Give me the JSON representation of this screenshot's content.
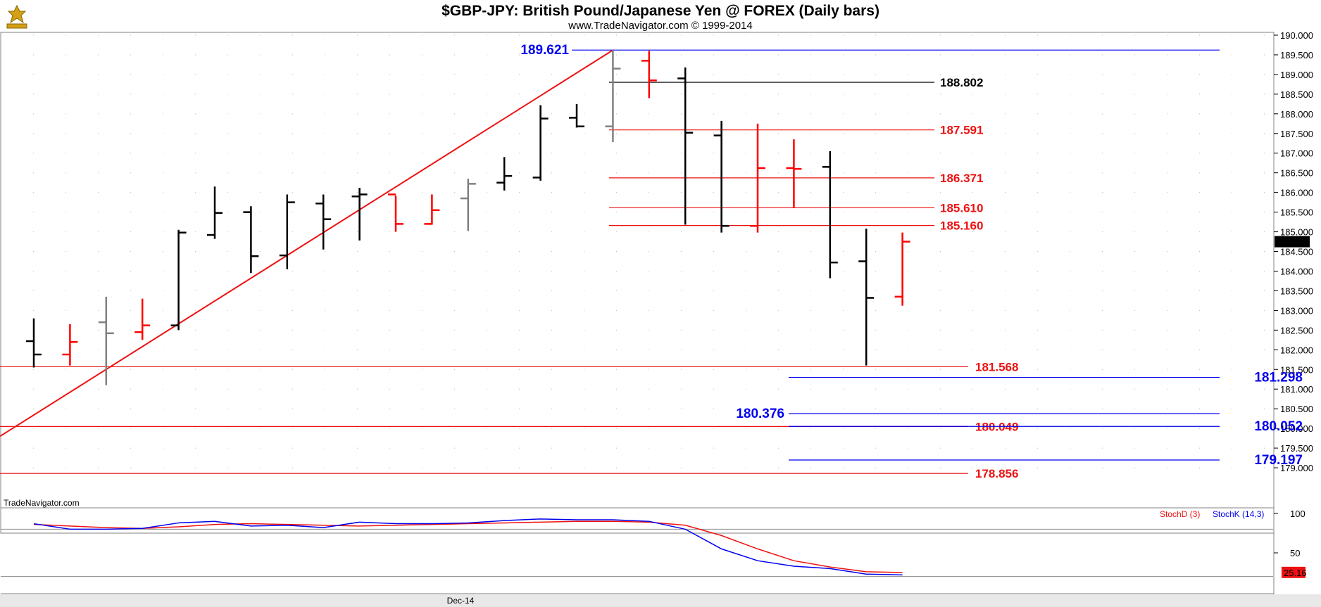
{
  "header": {
    "title": "$GBP-JPY:  British Pound/Japanese Yen @ FOREX  (Daily bars)",
    "subtitle": "www.TradeNavigator.com © 1999-2014",
    "watermark": "TradeNavigator.com"
  },
  "colors": {
    "up_bar": "#ff0000",
    "down_bar": "#000000",
    "neutral_bar": "#808080",
    "fib_red": "#ee1111",
    "fib_blue": "#0000ee",
    "level_black": "#000000",
    "stoch_d": "#ee1111",
    "stoch_k": "#0000ee",
    "last_price_bg": "#000000",
    "stoch_last_bg": "#ee1111"
  },
  "chart_data": [
    {
      "type": "ohlc",
      "title": "$GBP-JPY:  British Pound/Japanese Yen @ FOREX  (Daily bars)",
      "ylim": [
        178.5,
        190.0
      ],
      "y_ticks": [
        "190.000",
        "189.500",
        "189.000",
        "188.500",
        "188.000",
        "187.500",
        "187.000",
        "186.500",
        "186.000",
        "185.500",
        "185.000",
        "184.500",
        "184.000",
        "183.500",
        "183.000",
        "182.500",
        "182.000",
        "181.500",
        "181.000",
        "180.500",
        "180.000",
        "179.500",
        "179.000"
      ],
      "x_label": "Dec-14",
      "last_price": "184.749",
      "bars": [
        {
          "o": 182.22,
          "h": 182.8,
          "l": 181.55,
          "c": 181.88,
          "color": "black"
        },
        {
          "o": 181.88,
          "h": 182.65,
          "l": 181.6,
          "c": 182.2,
          "color": "red"
        },
        {
          "o": 182.7,
          "h": 183.35,
          "l": 181.1,
          "c": 182.42,
          "color": "gray"
        },
        {
          "o": 182.45,
          "h": 183.3,
          "l": 182.25,
          "c": 182.62,
          "color": "red"
        },
        {
          "o": 182.62,
          "h": 185.05,
          "l": 182.5,
          "c": 184.98,
          "color": "black"
        },
        {
          "o": 184.92,
          "h": 186.15,
          "l": 184.82,
          "c": 185.48,
          "color": "black"
        },
        {
          "o": 185.5,
          "h": 185.65,
          "l": 183.95,
          "c": 184.38,
          "color": "black"
        },
        {
          "o": 184.4,
          "h": 185.95,
          "l": 184.05,
          "c": 185.75,
          "color": "black"
        },
        {
          "o": 185.72,
          "h": 185.95,
          "l": 184.55,
          "c": 185.32,
          "color": "black"
        },
        {
          "o": 185.9,
          "h": 186.12,
          "l": 184.78,
          "c": 185.95,
          "color": "black"
        },
        {
          "o": 185.95,
          "h": 185.92,
          "l": 185.0,
          "c": 185.2,
          "color": "red"
        },
        {
          "o": 185.2,
          "h": 185.95,
          "l": 185.18,
          "c": 185.55,
          "color": "red"
        },
        {
          "o": 185.85,
          "h": 186.35,
          "l": 185.02,
          "c": 186.22,
          "color": "gray"
        },
        {
          "o": 186.25,
          "h": 186.9,
          "l": 186.05,
          "c": 186.42,
          "color": "black"
        },
        {
          "o": 186.38,
          "h": 188.22,
          "l": 186.3,
          "c": 187.88,
          "color": "black"
        },
        {
          "o": 187.9,
          "h": 188.25,
          "l": 187.65,
          "c": 187.68,
          "color": "black"
        },
        {
          "o": 187.68,
          "h": 189.62,
          "l": 187.28,
          "c": 189.15,
          "color": "gray"
        },
        {
          "o": 189.35,
          "h": 189.6,
          "l": 188.4,
          "c": 188.85,
          "color": "red"
        },
        {
          "o": 188.9,
          "h": 189.18,
          "l": 185.18,
          "c": 187.52,
          "color": "black"
        },
        {
          "o": 187.45,
          "h": 187.82,
          "l": 184.98,
          "c": 185.15,
          "color": "black"
        },
        {
          "o": 185.15,
          "h": 187.75,
          "l": 184.98,
          "c": 186.62,
          "color": "red"
        },
        {
          "o": 186.62,
          "h": 187.35,
          "l": 185.6,
          "c": 186.6,
          "color": "red"
        },
        {
          "o": 186.65,
          "h": 187.05,
          "l": 183.82,
          "c": 184.22,
          "color": "black"
        },
        {
          "o": 184.25,
          "h": 185.08,
          "l": 181.6,
          "c": 183.32,
          "color": "black"
        },
        {
          "o": 183.35,
          "h": 184.98,
          "l": 183.12,
          "c": 184.75,
          "color": "red"
        }
      ],
      "trendline": {
        "from_bar": 0,
        "from_price": 179.8,
        "to_bar": 16,
        "to_price": 189.62,
        "note": ""
      },
      "levels": [
        {
          "price": 189.621,
          "label": "189.621",
          "color": "blue"
        },
        {
          "price": 188.802,
          "label": "188.802",
          "color": "black"
        },
        {
          "price": 187.591,
          "label": "187.591",
          "color": "red"
        },
        {
          "price": 186.371,
          "label": "186.371",
          "color": "red"
        },
        {
          "price": 185.61,
          "label": "185.610",
          "color": "red"
        },
        {
          "price": 185.16,
          "label": "185.160",
          "color": "red"
        },
        {
          "price": 181.568,
          "label": "181.568",
          "color": "red"
        },
        {
          "price": 181.298,
          "label": "181.298",
          "color": "blue"
        },
        {
          "price": 180.376,
          "label": "180.376",
          "color": "blue"
        },
        {
          "price": 180.049,
          "label": "180.049",
          "color": "red"
        },
        {
          "price": 180.052,
          "label": "180.052",
          "color": "blue"
        },
        {
          "price": 179.197,
          "label": "179.197",
          "color": "blue"
        },
        {
          "price": 178.856,
          "label": "178.856",
          "color": "red"
        }
      ]
    },
    {
      "type": "line",
      "title": "",
      "ylim": [
        0,
        100
      ],
      "y_ticks": [
        "100",
        "50"
      ],
      "series": [
        {
          "name": "StochD (3)",
          "color": "red",
          "values": [
            86,
            84,
            82,
            81,
            83,
            86,
            87,
            86,
            85,
            84,
            85,
            86,
            87,
            88,
            89,
            90,
            90,
            89,
            85,
            72,
            55,
            40,
            32,
            26,
            25
          ]
        },
        {
          "name": "StochK (14,3)",
          "color": "blue",
          "values": [
            87,
            80,
            80,
            81,
            88,
            90,
            84,
            85,
            82,
            89,
            87,
            87,
            88,
            91,
            93,
            92,
            92,
            90,
            80,
            55,
            40,
            33,
            30,
            23,
            22
          ]
        }
      ],
      "last_value": "25.16"
    }
  ]
}
